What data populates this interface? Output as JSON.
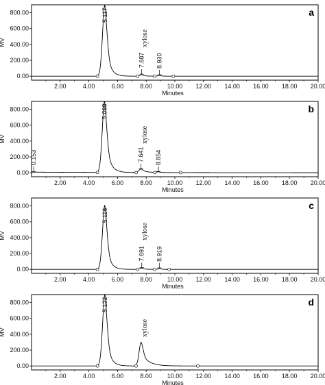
{
  "chart_data": [
    {
      "type": "line",
      "panel_label": "a",
      "xlabel": "Minutes",
      "ylabel": "MV",
      "xlim": [
        0,
        20
      ],
      "ylim": [
        -50,
        900
      ],
      "x_ticks": [
        2,
        4,
        6,
        8,
        10,
        12,
        14,
        16,
        18,
        20
      ],
      "x_tick_labels": [
        "2.00",
        "4.00",
        "6.00",
        "8.00",
        "10.00",
        "12.00",
        "14.00",
        "16.00",
        "18.00",
        "20.00"
      ],
      "y_ticks": [
        0,
        200,
        400,
        600,
        800
      ],
      "y_tick_labels": [
        "0.00",
        "200.00",
        "400.00",
        "600.00",
        "800.00"
      ],
      "baseline": 0,
      "peaks": [
        {
          "rt": 5.117,
          "height": 900,
          "sigma_left": 0.16,
          "tau": 0.28
        },
        {
          "rt": 7.687,
          "height": 18,
          "sigma_left": 0.12,
          "tau": 0.3
        },
        {
          "rt": 8.93,
          "height": 10,
          "sigma_left": 0.1,
          "tau": 0.2
        }
      ],
      "peak_labels": [
        {
          "rt": 5.117,
          "text": "5.117"
        },
        {
          "rt": 7.687,
          "text": "7.687"
        },
        {
          "rt": 8.93,
          "text": "8.930"
        }
      ],
      "compound_label": {
        "rt": 7.9,
        "text": "xylose"
      },
      "integration_markers": [
        4.6,
        7.4,
        8.6,
        9.9
      ]
    },
    {
      "type": "line",
      "panel_label": "b",
      "xlabel": "Minutes",
      "ylabel": "MV",
      "xlim": [
        0,
        20
      ],
      "ylim": [
        -50,
        900
      ],
      "x_ticks": [
        2,
        4,
        6,
        8,
        10,
        12,
        14,
        16,
        18,
        20
      ],
      "x_tick_labels": [
        "2.00",
        "4.00",
        "6.00",
        "8.00",
        "10.00",
        "12.00",
        "14.00",
        "16.00",
        "18.00",
        "20.00"
      ],
      "y_ticks": [
        0,
        200,
        400,
        600,
        800
      ],
      "y_tick_labels": [
        "0.00",
        "200.00",
        "400.00",
        "600.00",
        "800.00"
      ],
      "baseline": 8,
      "peaks": [
        {
          "rt": 5.098,
          "height": 900,
          "sigma_left": 0.16,
          "tau": 0.3
        },
        {
          "rt": 7.641,
          "height": 45,
          "sigma_left": 0.15,
          "tau": 0.45
        },
        {
          "rt": 8.854,
          "height": 8,
          "sigma_left": 0.1,
          "tau": 0.2
        }
      ],
      "peak_labels": [
        {
          "rt": 0.153,
          "text": "0.153"
        },
        {
          "rt": 5.098,
          "text": "5.098"
        },
        {
          "rt": 7.641,
          "text": "7.641"
        },
        {
          "rt": 8.854,
          "text": "8.854"
        }
      ],
      "compound_label": {
        "rt": 7.9,
        "text": "xylose"
      },
      "integration_markers": [
        4.6,
        7.3,
        8.6,
        10.4
      ]
    },
    {
      "type": "line",
      "panel_label": "c",
      "xlabel": "Minutes",
      "ylabel": "MV",
      "xlim": [
        0,
        20
      ],
      "ylim": [
        -50,
        900
      ],
      "x_ticks": [
        2,
        4,
        6,
        8,
        10,
        12,
        14,
        16,
        18,
        20
      ],
      "x_tick_labels": [
        "2.00",
        "4.00",
        "6.00",
        "8.00",
        "10.00",
        "12.00",
        "14.00",
        "16.00",
        "18.00",
        "20.00"
      ],
      "y_ticks": [
        0,
        200,
        400,
        600,
        800
      ],
      "y_tick_labels": [
        "0.00",
        "200.00",
        "400.00",
        "600.00",
        "800.00"
      ],
      "baseline": 0,
      "peaks": [
        {
          "rt": 5.116,
          "height": 810,
          "sigma_left": 0.16,
          "tau": 0.27
        },
        {
          "rt": 7.691,
          "height": 15,
          "sigma_left": 0.12,
          "tau": 0.3
        },
        {
          "rt": 8.919,
          "height": 10,
          "sigma_left": 0.1,
          "tau": 0.2
        }
      ],
      "peak_labels": [
        {
          "rt": 5.116,
          "text": "5.116"
        },
        {
          "rt": 7.691,
          "text": "7.691"
        },
        {
          "rt": 8.919,
          "text": "8.919"
        }
      ],
      "compound_label": {
        "rt": 7.9,
        "text": "xylose"
      },
      "integration_markers": [
        4.6,
        7.4,
        8.6,
        9.6
      ]
    },
    {
      "type": "line",
      "panel_label": "d",
      "xlabel": "Minutes",
      "ylabel": "MV",
      "xlim": [
        0,
        20
      ],
      "ylim": [
        -50,
        900
      ],
      "x_ticks": [
        2,
        4,
        6,
        8,
        10,
        12,
        14,
        16,
        18,
        20
      ],
      "x_tick_labels": [
        "2.00",
        "4.00",
        "6.00",
        "8.00",
        "10.00",
        "12.00",
        "14.00",
        "16.00",
        "18.00",
        "20.00"
      ],
      "y_ticks": [
        0,
        200,
        400,
        600,
        800
      ],
      "y_tick_labels": [
        "0.00",
        "200.00",
        "400.00",
        "600.00",
        "800.00"
      ],
      "baseline": 0,
      "peaks": [
        {
          "rt": 5.122,
          "height": 900,
          "sigma_left": 0.16,
          "tau": 0.28
        },
        {
          "rt": 7.65,
          "height": 300,
          "sigma_left": 0.14,
          "tau": 0.5
        }
      ],
      "peak_labels": [
        {
          "rt": 5.122,
          "text": "5.122"
        }
      ],
      "compound_label": {
        "rt": 7.9,
        "text": "xylose"
      },
      "integration_markers": [
        4.6,
        7.3,
        11.6
      ]
    }
  ]
}
